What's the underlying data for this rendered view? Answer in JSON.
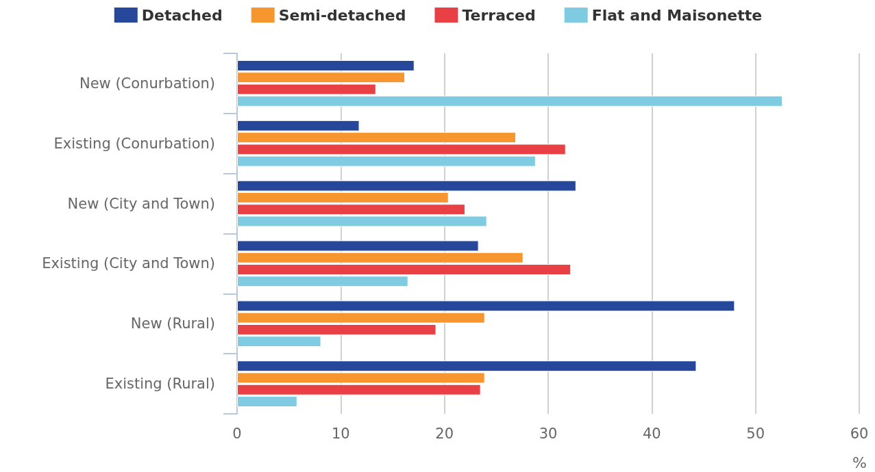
{
  "chart_data": {
    "type": "bar",
    "orientation": "horizontal",
    "xlabel": "%",
    "categories": [
      "New (Conurbation)",
      "Existing (Conurbation)",
      "New (City and Town)",
      "Existing (City and Town)",
      "New (Rural)",
      "Existing (Rural)"
    ],
    "series": [
      {
        "name": "Detached",
        "color": "#27479a",
        "values": [
          17.1,
          11.8,
          32.7,
          23.3,
          48.0,
          44.3
        ]
      },
      {
        "name": "Semi-detached",
        "color": "#f7962f",
        "values": [
          16.2,
          26.9,
          20.4,
          27.6,
          23.9,
          23.9
        ]
      },
      {
        "name": "Terraced",
        "color": "#e84045",
        "values": [
          13.4,
          31.7,
          22.0,
          32.2,
          19.2,
          23.5
        ]
      },
      {
        "name": "Flat and Maisonette",
        "color": "#7ecbe2",
        "values": [
          52.6,
          28.8,
          24.1,
          16.5,
          8.1,
          5.8
        ]
      }
    ],
    "xlim": [
      0,
      60
    ],
    "xticks": [
      0,
      10,
      20,
      30,
      40,
      50,
      60
    ],
    "grid": "x",
    "legend": "top"
  }
}
